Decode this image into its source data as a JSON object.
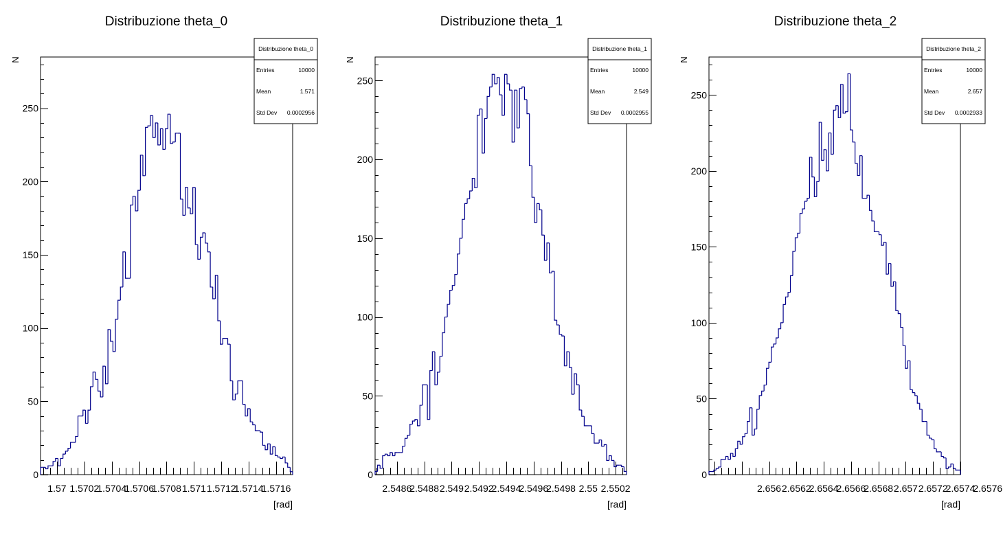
{
  "chart_data": [
    {
      "type": "bar",
      "title": "Distribuzione theta_0",
      "xlabel": "[rad]",
      "ylabel": "N",
      "xlim": [
        1.56988,
        1.57172
      ],
      "ylim": [
        0,
        285
      ],
      "xticks": [
        "1.57",
        "1.5702",
        "1.5704",
        "1.5706",
        "1.5708",
        "1.571",
        "1.5712",
        "1.5714",
        "1.5716"
      ],
      "xtick_values": [
        1.57,
        1.5702,
        1.5704,
        1.5706,
        1.5708,
        1.571,
        1.5712,
        1.5714,
        1.5716
      ],
      "yticks": [
        0,
        50,
        100,
        150,
        200,
        250
      ],
      "stats": {
        "name": "Distribuzione theta_0",
        "entries": "10000",
        "mean": "1.571",
        "std_dev": "0.0002956"
      },
      "values": [
        5,
        5,
        4,
        6,
        6,
        9,
        11,
        6,
        11,
        14,
        16,
        18,
        22,
        22,
        26,
        40,
        40,
        44,
        35,
        44,
        60,
        70,
        65,
        57,
        53,
        74,
        62,
        99,
        91,
        84,
        106,
        119,
        128,
        152,
        134,
        134,
        184,
        190,
        180,
        194,
        218,
        204,
        237,
        238,
        245,
        230,
        240,
        225,
        236,
        222,
        236,
        246,
        226,
        227,
        233,
        233,
        188,
        177,
        196,
        182,
        178,
        196,
        157,
        147,
        162,
        165,
        158,
        152,
        128,
        120,
        136,
        105,
        89,
        93,
        93,
        89,
        64,
        51,
        55,
        64,
        64,
        48,
        40,
        45,
        36,
        34,
        30,
        30,
        29,
        20,
        17,
        21,
        14,
        19,
        13,
        12,
        11,
        12,
        8,
        5,
        2
      ],
      "color": "#00008b"
    },
    {
      "type": "bar",
      "title": "Distribuzione theta_1",
      "xlabel": "[rad]",
      "ylabel": "N",
      "xlim": [
        2.54844,
        2.55028
      ],
      "ylim": [
        0,
        265
      ],
      "xticks": [
        "2.5486",
        "2.5488",
        "2.549",
        "2.5492",
        "2.5494",
        "2.5496",
        "2.5498",
        "2.55",
        "2.5502"
      ],
      "xtick_values": [
        2.5486,
        2.5488,
        2.549,
        2.5492,
        2.5494,
        2.5496,
        2.5498,
        2.55,
        2.5502
      ],
      "yticks": [
        0,
        50,
        100,
        150,
        200,
        250
      ],
      "stats": {
        "name": "Distribuzione theta_1",
        "entries": "10000",
        "mean": "2.549",
        "std_dev": "0.0002955"
      },
      "values": [
        2,
        6,
        4,
        12,
        13,
        12,
        14,
        12,
        14,
        14,
        14,
        18,
        23,
        25,
        32,
        34,
        35,
        31,
        44,
        57,
        57,
        35,
        66,
        78,
        57,
        65,
        75,
        90,
        100,
        108,
        117,
        120,
        127,
        140,
        150,
        162,
        172,
        175,
        180,
        188,
        182,
        228,
        232,
        204,
        226,
        240,
        246,
        254,
        248,
        252,
        241,
        228,
        254,
        248,
        244,
        211,
        244,
        220,
        245,
        246,
        238,
        229,
        196,
        176,
        160,
        172,
        168,
        152,
        136,
        147,
        128,
        129,
        98,
        95,
        89,
        88,
        69,
        78,
        68,
        51,
        64,
        57,
        41,
        37,
        31,
        31,
        31,
        26,
        20,
        20,
        22,
        18,
        19,
        9,
        12,
        9,
        5,
        6,
        6,
        5,
        2
      ],
      "color": "#00008b"
    },
    {
      "type": "bar",
      "title": "Distribuzione theta_2",
      "xlabel": "[rad]",
      "ylabel": "N",
      "xlim": [
        2.65556,
        2.6574
      ],
      "ylim": [
        0,
        275
      ],
      "xticks": [
        "2.656",
        "2.6562",
        "2.6564",
        "2.6566",
        "2.6568",
        "2.657",
        "2.6572",
        "2.6574",
        "2.6576"
      ],
      "xtick_values": [
        2.656,
        2.6562,
        2.6564,
        2.6566,
        2.6568,
        2.657,
        2.6572,
        2.6574,
        2.6576
      ],
      "yticks": [
        0,
        50,
        100,
        150,
        200,
        250
      ],
      "stats": {
        "name": "Distribuzione theta_2",
        "entries": "10000",
        "mean": "2.657",
        "std_dev": "0.0002933"
      },
      "values": [
        2,
        2,
        3,
        4,
        5,
        10,
        10,
        12,
        10,
        14,
        12,
        17,
        22,
        20,
        25,
        27,
        35,
        44,
        26,
        30,
        43,
        52,
        55,
        59,
        70,
        74,
        84,
        86,
        90,
        96,
        100,
        112,
        117,
        120,
        131,
        147,
        156,
        159,
        172,
        175,
        180,
        182,
        209,
        196,
        183,
        193,
        232,
        207,
        214,
        200,
        225,
        211,
        240,
        243,
        235,
        257,
        238,
        239,
        264,
        227,
        219,
        205,
        197,
        210,
        182,
        182,
        184,
        174,
        167,
        160,
        160,
        158,
        151,
        153,
        132,
        139,
        124,
        127,
        108,
        106,
        97,
        85,
        70,
        75,
        56,
        54,
        52,
        47,
        43,
        35,
        35,
        26,
        24,
        23,
        17,
        15,
        15,
        12,
        11,
        4,
        5,
        7,
        4,
        3,
        3
      ],
      "color": "#00008b"
    }
  ]
}
